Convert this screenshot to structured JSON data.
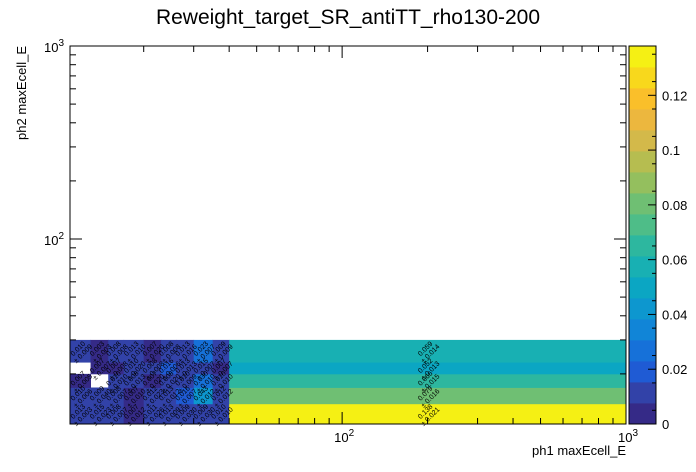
{
  "chart_data": {
    "type": "heatmap",
    "title": "Reweight_target_SR_antiTT_rho130-200",
    "xlabel": "ph1 maxEcell_E",
    "ylabel": "ph2 maxEcell_E",
    "x_scale": "log",
    "y_scale": "log",
    "xlim": [
      11,
      1000
    ],
    "ylim": [
      11,
      1000
    ],
    "zlim": [
      0,
      0.138
    ],
    "x_ticks": [
      {
        "value": 100,
        "label": "10",
        "exp": "2"
      },
      {
        "value": 1000,
        "label": "10",
        "exp": "3"
      }
    ],
    "y_ticks": [
      {
        "value": 100,
        "label": "10",
        "exp": "2"
      },
      {
        "value": 1000,
        "label": "10",
        "exp": "3"
      }
    ],
    "z_ticks": [
      0,
      0.02,
      0.04,
      0.06,
      0.08,
      0.1,
      0.12
    ],
    "z_tick_labels": [
      "0",
      "0.02",
      "0.04",
      "0.06",
      "0.08",
      "0.1",
      "0.12"
    ],
    "x_edges": [
      11,
      13,
      15,
      17,
      20,
      23,
      26,
      30,
      35,
      40,
      1000
    ],
    "y_edges": [
      11,
      14,
      17,
      20,
      23,
      30,
      40,
      1000
    ],
    "cells": [
      {
        "ix": 0,
        "iy": 0,
        "z": 0.013,
        "label": "0.013",
        "err": "± 0.003"
      },
      {
        "ix": 1,
        "iy": 0,
        "z": 0.015,
        "label": "0.015",
        "err": "± 0.023"
      },
      {
        "ix": 2,
        "iy": 0,
        "z": 0.008,
        "label": "0.008",
        "err": "± 0.007"
      },
      {
        "ix": 3,
        "iy": 0,
        "z": 0.007,
        "label": "0.007",
        "err": "± 0.012"
      },
      {
        "ix": 4,
        "iy": 0,
        "z": 0.011,
        "label": "0.011",
        "err": "± 0.026"
      },
      {
        "ix": 5,
        "iy": 0,
        "z": 0.013,
        "label": "0.013",
        "err": "± 0.009"
      },
      {
        "ix": 6,
        "iy": 0,
        "z": 0.009,
        "label": "0.009",
        "err": "± 0.030"
      },
      {
        "ix": 7,
        "iy": 0,
        "z": 0.009,
        "label": "0.009",
        "err": "± 0.030"
      },
      {
        "ix": 8,
        "iy": 0,
        "z": 0.01,
        "label": "0.010",
        "err": "± 0.010"
      },
      {
        "ix": 9,
        "iy": 0,
        "z": 0.138,
        "label": "0.138",
        "err": "± 0.021"
      },
      {
        "ix": 0,
        "iy": 1,
        "z": 0.01,
        "label": "0.010",
        "err": "± 0.006"
      },
      {
        "ix": 1,
        "iy": 1,
        "z": 0.009,
        "label": "0.009",
        "err": "± 0.040"
      },
      {
        "ix": 2,
        "iy": 1,
        "z": 0.008,
        "label": "0.008",
        "err": "± 0.007"
      },
      {
        "ix": 3,
        "iy": 1,
        "z": 0.007,
        "label": "0.007",
        "err": "± 0.010"
      },
      {
        "ix": 4,
        "iy": 1,
        "z": 0.012,
        "label": "0.012",
        "err": "± 0.023"
      },
      {
        "ix": 5,
        "iy": 1,
        "z": 0.013,
        "label": "0.013",
        "err": "± 0.012"
      },
      {
        "ix": 6,
        "iy": 1,
        "z": 0.016,
        "label": "0.016",
        "err": "± 0.007"
      },
      {
        "ix": 7,
        "iy": 1,
        "z": 0.043,
        "label": "0.043",
        "err": "± 0.012"
      },
      {
        "ix": 8,
        "iy": 1,
        "z": 0.012,
        "label": "0.012",
        "err": "± 0.012"
      },
      {
        "ix": 9,
        "iy": 1,
        "z": 0.079,
        "label": "0.079",
        "err": "± 0.016"
      },
      {
        "ix": 0,
        "iy": 2,
        "z": 0.007,
        "label": "0.007",
        "err": "± 0.005"
      },
      {
        "ix": 1,
        "iy": 2,
        "z": null
      },
      {
        "ix": 2,
        "iy": 2,
        "z": 0.01,
        "label": "0.010",
        "err": "± 0.010"
      },
      {
        "ix": 3,
        "iy": 2,
        "z": 0.008,
        "label": "0.008",
        "err": "± 0.013"
      },
      {
        "ix": 4,
        "iy": 2,
        "z": 0.007,
        "label": "0.007",
        "err": "± 0.020"
      },
      {
        "ix": 5,
        "iy": 2,
        "z": 0.008,
        "label": "0.008",
        "err": "± 0.020"
      },
      {
        "ix": 6,
        "iy": 2,
        "z": 0.01,
        "label": "0.010",
        "err": "± 0.009"
      },
      {
        "ix": 7,
        "iy": 2,
        "z": 0.03,
        "label": "0.030",
        "err": "± 0.010"
      },
      {
        "ix": 8,
        "iy": 2,
        "z": 0.01,
        "label": "0.010",
        "err": "± 0.010"
      },
      {
        "ix": 9,
        "iy": 2,
        "z": 0.066,
        "label": "0.066",
        "err": "± 0.015"
      },
      {
        "ix": 0,
        "iy": 3,
        "z": null
      },
      {
        "ix": 1,
        "iy": 3,
        "z": 0.007,
        "label": "0.007",
        "err": "± 0.007"
      },
      {
        "ix": 2,
        "iy": 3,
        "z": 0.007,
        "label": "0.007",
        "err": "± 0.008"
      },
      {
        "ix": 3,
        "iy": 3,
        "z": 0.01,
        "label": "0.010",
        "err": "± 0.020"
      },
      {
        "ix": 4,
        "iy": 3,
        "z": 0.008,
        "label": "0.008",
        "err": "± 0.008"
      },
      {
        "ix": 5,
        "iy": 3,
        "z": 0.016,
        "label": "0.016",
        "err": "± 0.006"
      },
      {
        "ix": 6,
        "iy": 3,
        "z": 0.013,
        "label": "0.013",
        "err": "± 0.013"
      },
      {
        "ix": 7,
        "iy": 3,
        "z": 0.015,
        "label": "0.015",
        "err": "± 0.007"
      },
      {
        "ix": 8,
        "iy": 3,
        "z": 0.007,
        "label": "0.007",
        "err": "± 0.007"
      },
      {
        "ix": 9,
        "iy": 3,
        "z": 0.052,
        "label": "0.052",
        "err": "± 0.013"
      },
      {
        "ix": 0,
        "iy": 4,
        "z": 0.01,
        "label": "0.010",
        "err": "± 0.009"
      },
      {
        "ix": 1,
        "iy": 4,
        "z": 0.003,
        "label": "0.003",
        "err": "± 0.003"
      },
      {
        "ix": 2,
        "iy": 4,
        "z": 0.008,
        "label": "0.008",
        "err": "± 0.008"
      },
      {
        "ix": 3,
        "iy": 4,
        "z": 0.013,
        "label": "0.013",
        "err": "± 0.010"
      },
      {
        "ix": 4,
        "iy": 4,
        "z": 0.007,
        "label": "0.007",
        "err": "± 0.020"
      },
      {
        "ix": 5,
        "iy": 4,
        "z": 0.008,
        "label": "0.008",
        "err": "± 0.008"
      },
      {
        "ix": 6,
        "iy": 4,
        "z": 0.013,
        "label": "0.013",
        "err": "± 0.016"
      },
      {
        "ix": 7,
        "iy": 4,
        "z": 0.023,
        "label": "0.023",
        "err": "± 0.007"
      },
      {
        "ix": 8,
        "iy": 4,
        "z": 0.009,
        "label": "0.009",
        "err": "± 0.009"
      },
      {
        "ix": 9,
        "iy": 4,
        "z": 0.059,
        "label": "0.059",
        "err": "± 0.014"
      }
    ]
  },
  "palette": [
    "#352a87",
    "#3242a8",
    "#1f5bd4",
    "#1671d9",
    "#1185d7",
    "#0d97cf",
    "#0ba6c3",
    "#18b0b3",
    "#2db79f",
    "#4ebd88",
    "#6fbf73",
    "#94bf5e",
    "#b6bd50",
    "#d3b94a",
    "#ecb73e",
    "#fabf2a",
    "#f8d81c",
    "#f5f014"
  ]
}
